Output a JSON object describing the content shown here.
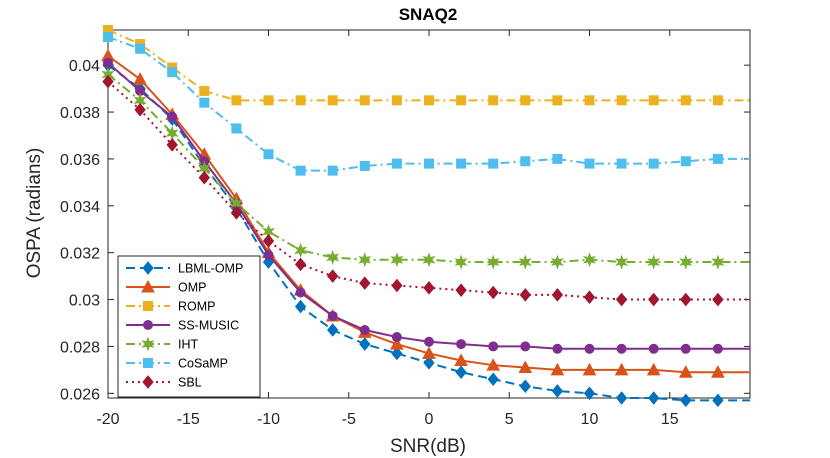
{
  "chart_data": {
    "type": "line",
    "title": "SNAQ2",
    "xlabel": "SNR(dB)",
    "ylabel": "OSPA (radians)",
    "xlim": [
      -20,
      20
    ],
    "ylim": [
      0.0258,
      0.0415
    ],
    "xticks": [
      -20,
      -15,
      -10,
      -5,
      0,
      5,
      10,
      15
    ],
    "xtick_labels": [
      "-20",
      "-15",
      "-10",
      "-5",
      "0",
      "5",
      "10",
      "15"
    ],
    "yticks": [
      0.026,
      0.028,
      0.03,
      0.032,
      0.034,
      0.036,
      0.038,
      0.04
    ],
    "ytick_labels": [
      "0.026",
      "0.028",
      "0.03",
      "0.032",
      "0.034",
      "0.036",
      "0.038",
      "0.04"
    ],
    "x": [
      -20,
      -18,
      -16,
      -14,
      -12,
      -10,
      -8,
      -6,
      -4,
      -2,
      0,
      2,
      4,
      6,
      8,
      10,
      12,
      14,
      16,
      18,
      20
    ],
    "legend_position": "bottom-left",
    "grid": false,
    "series": [
      {
        "name": "LBML-OMP",
        "color": "#0072BD",
        "dash": "9,5",
        "marker": "diamond",
        "values": [
          0.04,
          0.039,
          0.0377,
          0.0357,
          0.0339,
          0.0316,
          0.0297,
          0.0287,
          0.0281,
          0.0277,
          0.0273,
          0.0269,
          0.0266,
          0.0263,
          0.0261,
          0.026,
          0.0258,
          0.0258,
          0.0257,
          0.0257,
          0.0257
        ]
      },
      {
        "name": "OMP",
        "color": "#D95319",
        "dash": "",
        "marker": "triangle",
        "values": [
          0.0404,
          0.0394,
          0.0379,
          0.0362,
          0.0343,
          0.032,
          0.0304,
          0.0293,
          0.0286,
          0.0281,
          0.0277,
          0.0274,
          0.0272,
          0.0271,
          0.027,
          0.027,
          0.027,
          0.027,
          0.0269,
          0.0269,
          0.0269
        ]
      },
      {
        "name": "ROMP",
        "color": "#EDB120",
        "dash": "9,4,2,4",
        "marker": "square",
        "values": [
          0.0415,
          0.0409,
          0.0399,
          0.0389,
          0.0385,
          0.0385,
          0.0385,
          0.0385,
          0.0385,
          0.0385,
          0.0385,
          0.0385,
          0.0385,
          0.0385,
          0.0385,
          0.0385,
          0.0385,
          0.0385,
          0.0385,
          0.0385,
          0.0385
        ]
      },
      {
        "name": "SS-MUSIC",
        "color": "#7E2F8E",
        "dash": "",
        "marker": "circle",
        "values": [
          0.0401,
          0.0389,
          0.0378,
          0.0359,
          0.0341,
          0.0319,
          0.0303,
          0.0293,
          0.0287,
          0.0284,
          0.0282,
          0.0281,
          0.028,
          0.028,
          0.0279,
          0.0279,
          0.0279,
          0.0279,
          0.0279,
          0.0279,
          0.0279
        ]
      },
      {
        "name": "IHT",
        "color": "#77AC30",
        "dash": "9,4,2,4",
        "marker": "star",
        "values": [
          0.0396,
          0.0385,
          0.0371,
          0.0356,
          0.0341,
          0.0329,
          0.0321,
          0.0318,
          0.0317,
          0.0317,
          0.0317,
          0.0316,
          0.0316,
          0.0316,
          0.0316,
          0.0317,
          0.0316,
          0.0316,
          0.0316,
          0.0316,
          0.0316
        ]
      },
      {
        "name": "CoSaMP",
        "color": "#4DBEEE",
        "dash": "9,4,2,4",
        "marker": "square",
        "values": [
          0.0412,
          0.0407,
          0.0397,
          0.0384,
          0.0373,
          0.0362,
          0.0355,
          0.0355,
          0.0357,
          0.0358,
          0.0358,
          0.0358,
          0.0358,
          0.0359,
          0.036,
          0.0358,
          0.0358,
          0.0358,
          0.0359,
          0.036,
          0.036
        ]
      },
      {
        "name": "SBL",
        "color": "#A2142F",
        "dash": "2,4",
        "marker": "diamond",
        "values": [
          0.0393,
          0.0381,
          0.0366,
          0.0352,
          0.0337,
          0.0325,
          0.0315,
          0.031,
          0.0307,
          0.0306,
          0.0305,
          0.0304,
          0.0303,
          0.0302,
          0.0302,
          0.0301,
          0.03,
          0.03,
          0.03,
          0.03,
          0.03
        ]
      }
    ]
  }
}
